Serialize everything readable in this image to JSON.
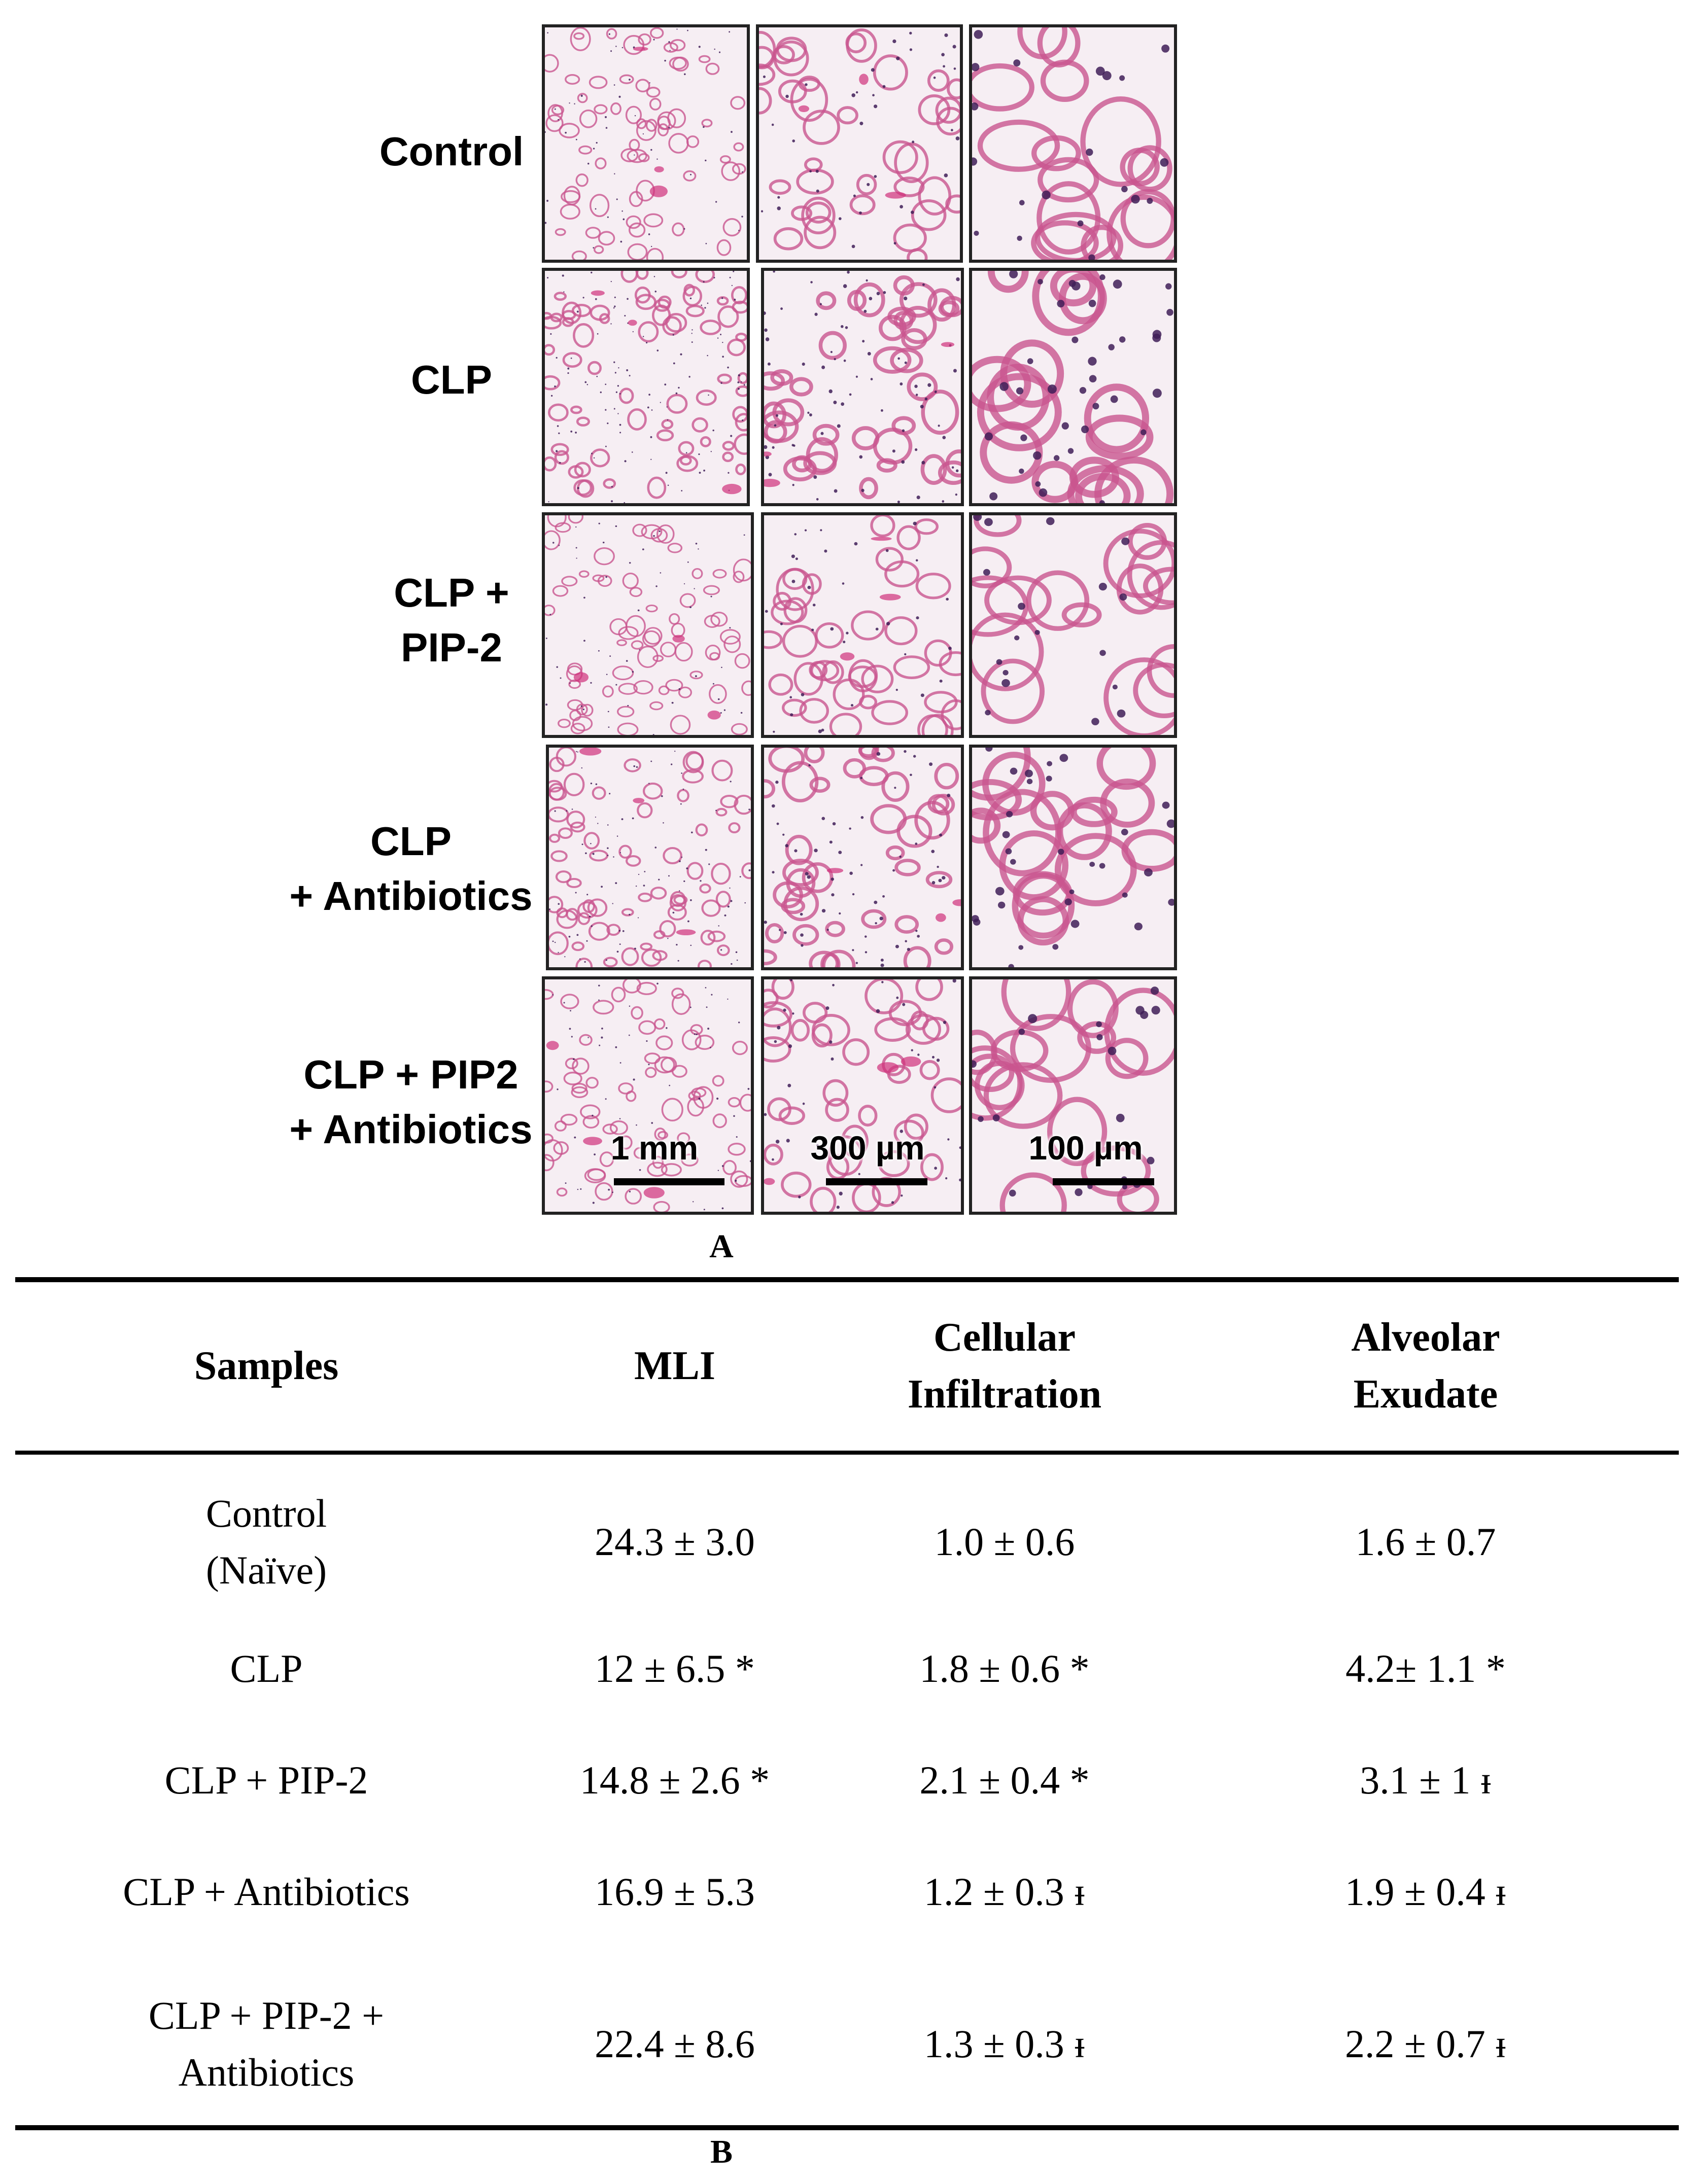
{
  "panel_a": {
    "label": "A",
    "rows": [
      {
        "label_lines": [
          "Control"
        ]
      },
      {
        "label_lines": [
          "CLP"
        ]
      },
      {
        "label_lines": [
          "CLP +",
          "PIP-2"
        ]
      },
      {
        "label_lines": [
          "CLP",
          "+ Antibiotics"
        ]
      },
      {
        "label_lines": [
          "CLP + PIP2",
          "+ Antibiotics"
        ]
      }
    ],
    "scale_labels": [
      "1 mm",
      "300 µm",
      "100 µm"
    ],
    "stain_colors": {
      "background": "#f6eef3",
      "tissue": "#c9558e",
      "nuclei": "#3f1d57",
      "vessel": "#d0307a"
    }
  },
  "panel_b": {
    "label": "B",
    "columns": [
      {
        "lines": [
          "Samples"
        ]
      },
      {
        "lines": [
          "MLI"
        ]
      },
      {
        "lines": [
          "Cellular",
          "Infiltration"
        ]
      },
      {
        "lines": [
          "Alveolar",
          "Exudate"
        ]
      }
    ],
    "rows": [
      {
        "sample_lines": [
          "Control",
          "(Naïve)"
        ],
        "mli": "24.3 ± 3.0",
        "infiltration": "1.0 ± 0.6",
        "exudate": "1.6 ± 0.7"
      },
      {
        "sample_lines": [
          "CLP"
        ],
        "mli": "12 ± 6.5 *",
        "infiltration": "1.8 ± 0.6 *",
        "exudate": "4.2± 1.1 *"
      },
      {
        "sample_lines": [
          "CLP + PIP-2"
        ],
        "mli": "14.8 ± 2.6 *",
        "infiltration": "2.1 ± 0.4 *",
        "exudate": "3.1 ± 1 ᵻ"
      },
      {
        "sample_lines": [
          "CLP + Antibiotics"
        ],
        "mli": "16.9 ± 5.3",
        "infiltration": "1.2 ± 0.3 ᵻ",
        "exudate": "1.9 ± 0.4 ᵻ"
      },
      {
        "sample_lines": [
          "CLP + PIP-2 +",
          "Antibiotics"
        ],
        "mli": "22.4 ± 8.6",
        "infiltration": "1.3 ± 0.3 ᵻ",
        "exudate": "2.2 ± 0.7 ᵻ"
      }
    ]
  }
}
